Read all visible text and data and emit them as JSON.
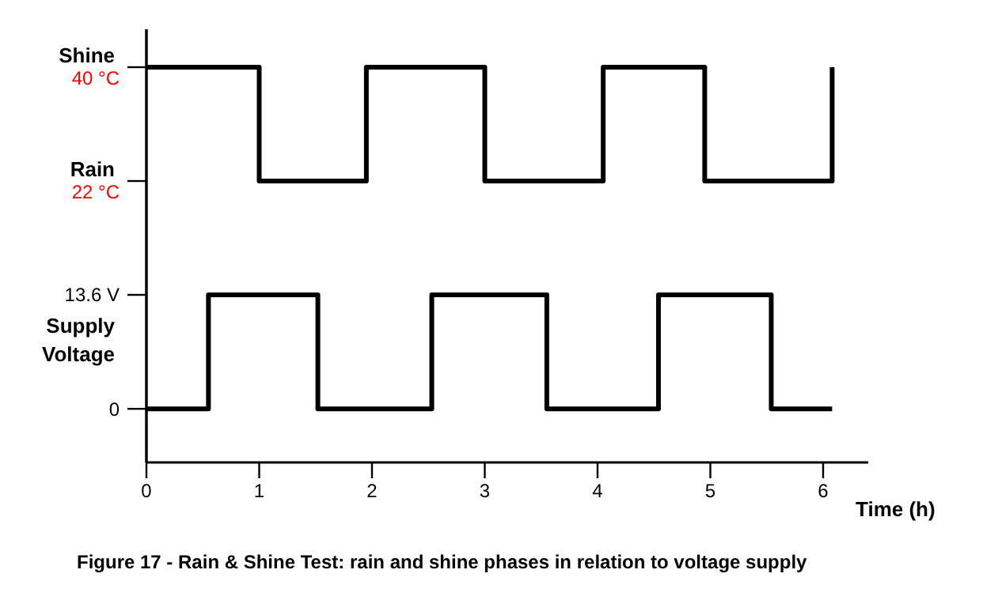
{
  "chart_data": {
    "type": "step",
    "xlim": [
      0,
      6.4
    ],
    "xticks": [
      0,
      1,
      2,
      3,
      4,
      5,
      6
    ],
    "xlabel": "Time (h)",
    "grid": false,
    "ylim": [
      -22.5,
      46
    ],
    "yticks": [
      {
        "value": 40,
        "label": "40 °C"
      },
      {
        "value": 22,
        "label": "22 °C"
      }
    ],
    "y2lim": [
      -6.4,
      45.3
    ],
    "y2ticks": [
      {
        "value": 13.6,
        "label": "13.6 V"
      },
      0
    ],
    "annotations": [
      "Shine",
      "Rain",
      "Supply Voltage",
      "Figure 17 - Rain & Shine Test: rain and shine phases in relation to voltage supply"
    ],
    "series": [
      {
        "color": "#000000",
        "x": [
          0,
          1,
          1.95,
          3,
          4.05,
          4.95,
          6.08
        ],
        "values": [
          40,
          22,
          40,
          22,
          40,
          22,
          40
        ]
      },
      {
        "color": "#000000",
        "axis": "y2",
        "x": [
          0,
          0.55,
          1.52,
          2.53,
          3.55,
          4.54,
          5.54,
          6.08
        ],
        "values": [
          0,
          13.6,
          0,
          13.6,
          0,
          13.6,
          0,
          0
        ]
      }
    ]
  }
}
